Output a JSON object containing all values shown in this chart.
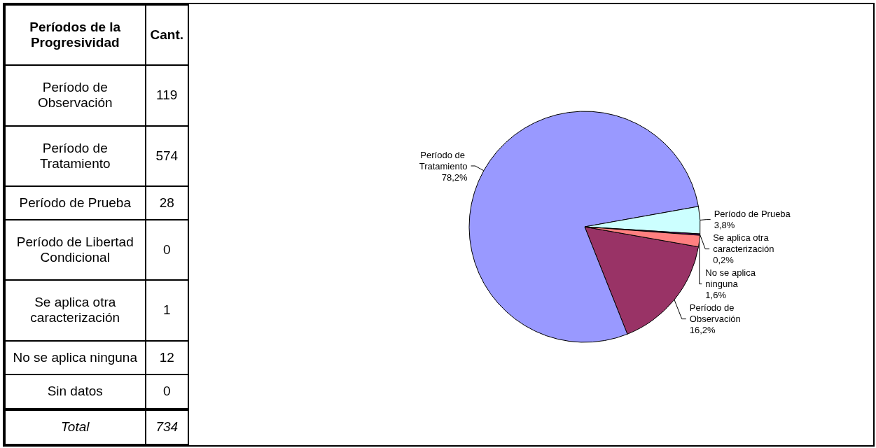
{
  "chart_data": [
    {
      "type": "other",
      "categories": [
        "Período de Observación",
        "Período de Tratamiento",
        "Período de Prueba",
        "Período de Libertad Condicional",
        "Se aplica otra caracterización",
        "No se aplica ninguna",
        "Sin datos"
      ],
      "values": [
        119,
        574,
        28,
        0,
        1,
        12,
        0
      ],
      "xlabel": "Períodos de la Progresividad",
      "ylabel": "Cant.",
      "data_labels": true,
      "totals": [
        "734"
      ],
      "annotations": [
        "Total"
      ]
    },
    {
      "type": "pie",
      "categories": [
        "Período de Observación",
        "Período de Tratamiento",
        "Período de Prueba",
        "Se aplica otra caracterización",
        "No se aplica ninguna"
      ],
      "values": [
        16.2,
        78.2,
        3.8,
        0.2,
        1.6
      ],
      "colors": [
        "#993366",
        "#9999ff",
        "#ccffff",
        "#660066",
        "#ff8080"
      ],
      "value_labels": [
        "16,2%",
        "78,2%",
        "3,8%",
        "0,2%",
        "1,6%"
      ],
      "data_labels": true
    }
  ]
}
